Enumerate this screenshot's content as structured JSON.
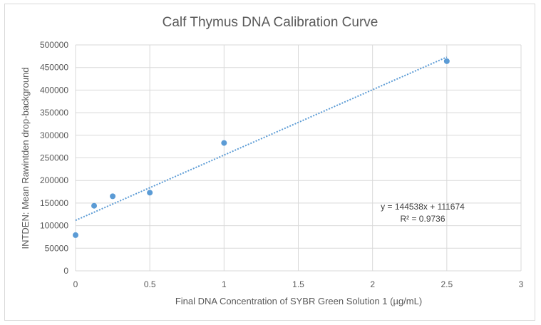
{
  "chart_data": {
    "type": "scatter",
    "title": "Calf Thymus DNA Calibration Curve",
    "xlabel": "Final DNA Concentration of SYBR Green Solution 1 (µg/mL)",
    "ylabel": "INTDEN: Mean Rawintden drop-background",
    "xlim": [
      0,
      3
    ],
    "ylim": [
      0,
      500000
    ],
    "x_ticks": [
      0,
      0.5,
      1,
      1.5,
      2,
      2.5,
      3
    ],
    "x_tick_labels": [
      "0",
      "0.5",
      "1",
      "1.5",
      "2",
      "2.5",
      "3"
    ],
    "y_ticks": [
      0,
      50000,
      100000,
      150000,
      200000,
      250000,
      300000,
      350000,
      400000,
      450000,
      500000
    ],
    "y_tick_labels": [
      "0",
      "50000",
      "100000",
      "150000",
      "200000",
      "250000",
      "300000",
      "350000",
      "400000",
      "450000",
      "500000"
    ],
    "grid": "vertical and horizontal major gridlines",
    "series": [
      {
        "x": [
          0,
          0.125,
          0.25,
          0.5,
          1,
          2.5
        ],
        "y": [
          79000,
          144000,
          165000,
          173000,
          283000,
          464000
        ],
        "color": "#5b9bd5"
      }
    ],
    "trendline": {
      "type": "linear",
      "slope": 144538,
      "intercept": 111674,
      "x_range": [
        0,
        2.5
      ],
      "style": "dotted",
      "color": "#5b9bd5",
      "equation_label": "y = 144538x + 111674",
      "r2_label": "R² = 0.9736"
    }
  }
}
